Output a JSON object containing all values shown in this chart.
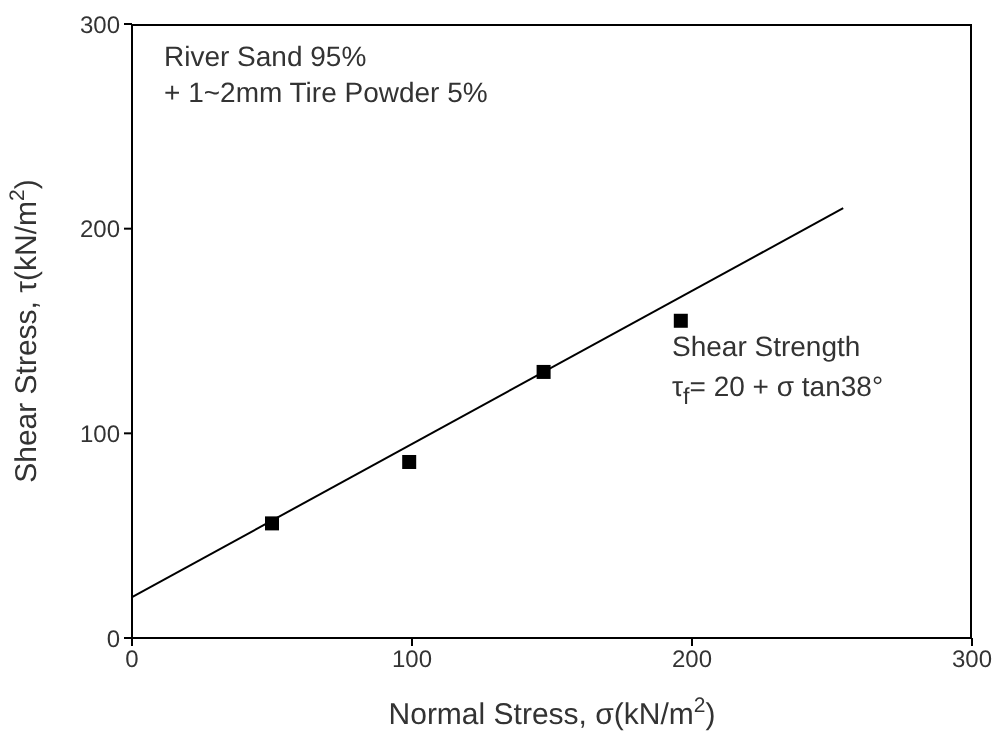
{
  "chart_data": {
    "type": "scatter",
    "xlabel": "Normal Stress, σ(kN/m$^{2}$)",
    "ylabel": "Shear Stress, τ(kN/m$^{2}$)",
    "xlim": [
      0,
      300
    ],
    "ylim": [
      0,
      300
    ],
    "xticks": [
      0,
      100,
      200,
      300
    ],
    "yticks": [
      0,
      100,
      200,
      300
    ],
    "grid": false,
    "marker": "square",
    "series": [
      {
        "color": "#000000",
        "x": [
          50,
          99,
          147,
          196
        ],
        "values": [
          56,
          86,
          130,
          155
        ]
      },
      {
        "type": "line",
        "color": "#000000",
        "marker": "none",
        "x": [
          0,
          254
        ],
        "values": [
          20,
          210
        ]
      }
    ],
    "annotations": [
      "River Sand 95%",
      "+ 1~2mm Tire Powder 5%",
      "Shear Strength",
      "τ$_{f}$= 20 + σ tan38°"
    ]
  }
}
